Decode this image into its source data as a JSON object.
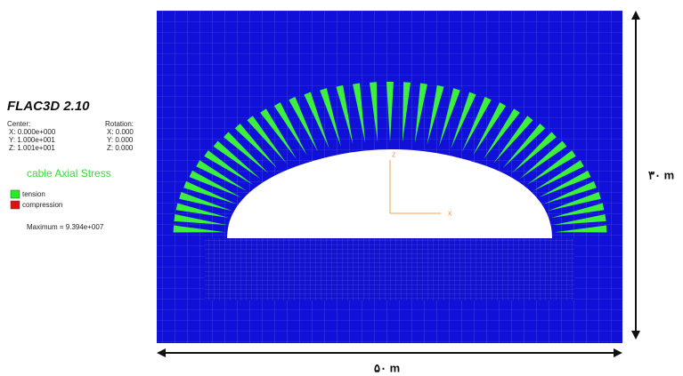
{
  "title": "FLAC3D 2.10",
  "center": {
    "label": "Center:",
    "x": "X: 0.000e+000",
    "y": "Y: 1.000e+001",
    "z": "Z: 1.001e+001"
  },
  "rotation": {
    "label": "Rotation:",
    "x": "X:   0.000",
    "y": "Y:   0.000",
    "z": "Z:   0.000"
  },
  "legend": {
    "title": "cable Axial Stress",
    "items": [
      "tension",
      "compression"
    ],
    "maximum": "Maximum =  9.394e+007"
  },
  "axes": {
    "z": "z",
    "x": "x"
  },
  "dimensions": {
    "height": "۳۰ m",
    "width": "۵۰ m"
  }
}
